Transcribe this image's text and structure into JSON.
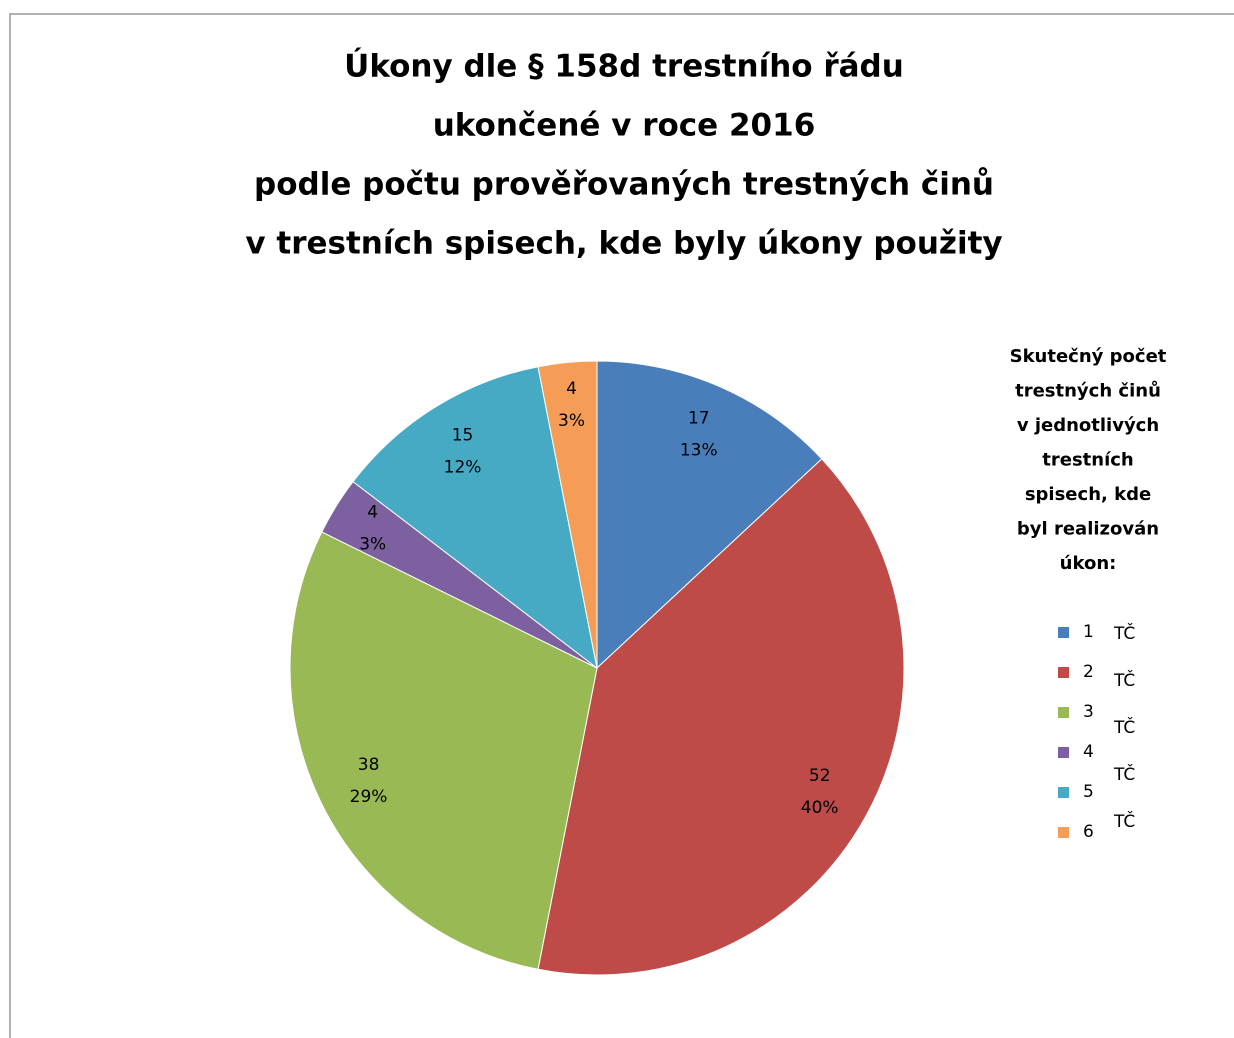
{
  "chart_data": {
    "type": "pie",
    "title_lines": [
      "Úkony dle § 158d trestního řádu",
      "ukončené v roce 2016",
      "podle počtu prověřovaných trestných činů",
      "v trestních spisech, kde byly úkony použity"
    ],
    "legend_title_lines": [
      "Skutečný počet",
      "trestných činů",
      "v jednotlivých",
      "trestních",
      "spisech, kde",
      "byl realizován",
      "úkon:"
    ],
    "categories": [
      "1",
      "2",
      "3",
      "4",
      "5",
      "6"
    ],
    "legend_suffixes": [
      "TČ",
      "TČ",
      "TČ",
      "TČ",
      "TČ"
    ],
    "values": [
      17,
      52,
      38,
      4,
      15,
      4
    ],
    "percent_labels": [
      "13%",
      "40%",
      "29%",
      "3%",
      "12%",
      "3%"
    ],
    "colors": [
      "#4a7ebb",
      "#be4b48",
      "#98b954",
      "#7d60a0",
      "#46aac5",
      "#f59d56"
    ]
  }
}
